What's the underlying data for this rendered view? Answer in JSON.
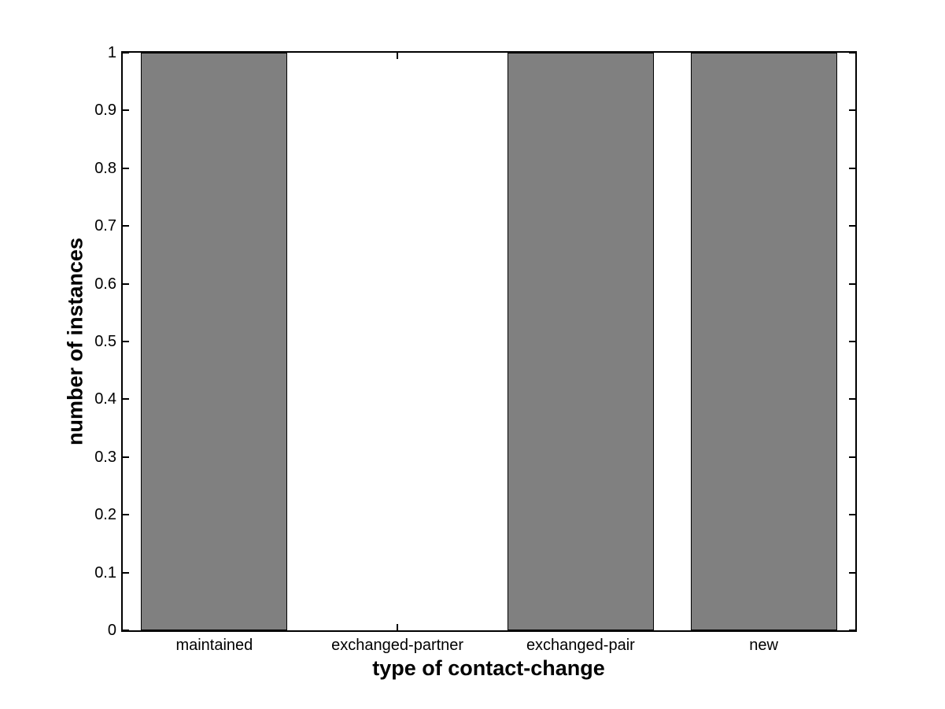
{
  "figure": {
    "background_color": "#ffffff"
  },
  "chart_data": {
    "type": "bar",
    "title": "",
    "xlabel": "type of contact-change",
    "ylabel": "number of instances",
    "categories": [
      "maintained",
      "exchanged-partner",
      "exchanged-pair",
      "new"
    ],
    "values": [
      1,
      0,
      1,
      1
    ],
    "ylim": [
      0,
      1
    ],
    "yticks": [
      0,
      0.1,
      0.2,
      0.3,
      0.4,
      0.5,
      0.6,
      0.7,
      0.8,
      0.9,
      1
    ],
    "ytick_labels": [
      "0",
      "0.1",
      "0.2",
      "0.3",
      "0.4",
      "0.5",
      "0.6",
      "0.7",
      "0.8",
      "0.9",
      "1"
    ],
    "bar_color": "#808080",
    "bar_edge_color": "#000000",
    "axis_color": "#000000",
    "bar_width_fraction": 0.8,
    "grid": false,
    "legend": null,
    "box": true,
    "tick_direction": "in"
  }
}
